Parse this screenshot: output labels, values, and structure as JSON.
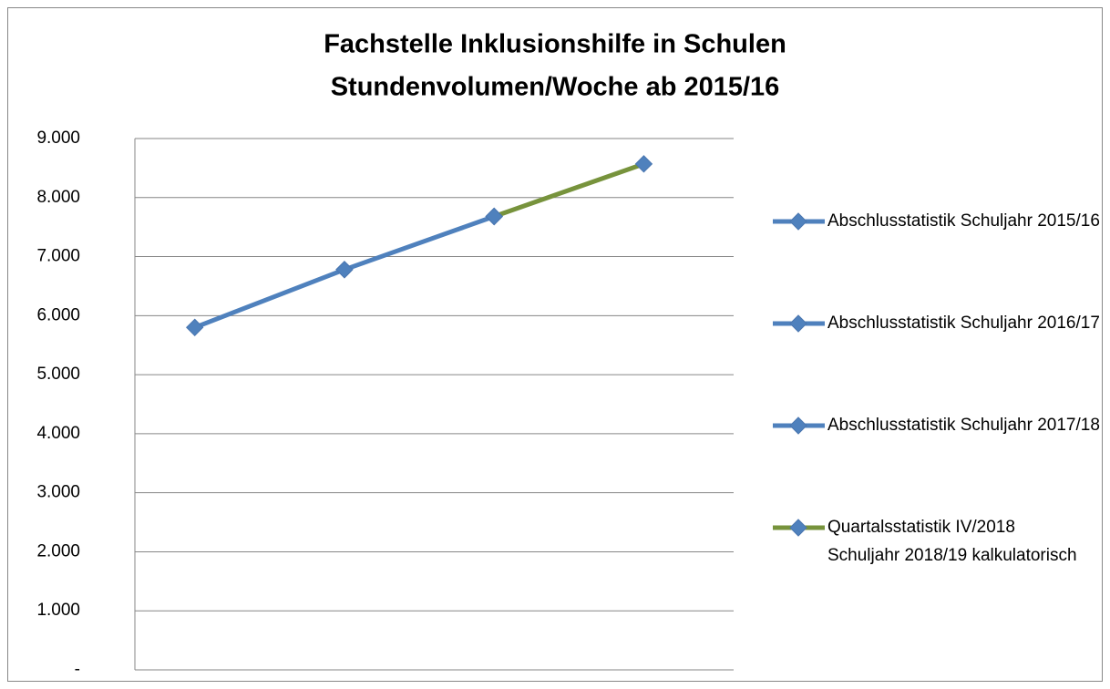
{
  "chart_data": {
    "type": "line",
    "title": "Fachstelle Inklusionshilfe in Schulen",
    "subtitle": "Stundenvolumen/Woche ab 2015/16",
    "categories": [
      null,
      null,
      null,
      null
    ],
    "series": [
      {
        "name": "Abschlusstatistik Schuljahr 2015/16",
        "color": "#4f81bd",
        "values": [
          5800,
          6780,
          null,
          null
        ]
      },
      {
        "name": "Abschlusstatistik Schuljahr 2016/17",
        "color": "#4f81bd",
        "values": [
          null,
          6780,
          7680,
          null
        ]
      },
      {
        "name": "Abschlusstatistik Schuljahr 2017/18",
        "color": "#4f81bd",
        "values": [
          null,
          null,
          7680,
          null
        ]
      },
      {
        "name": "Quartalsstatistik IV/2018 Schuljahr 2018/19 kalkulatorisch",
        "color": "#77933c",
        "values": [
          null,
          null,
          7680,
          8570
        ]
      }
    ],
    "ylim": [
      0,
      9000
    ],
    "yticks": [
      {
        "value": 0,
        "label": "-"
      },
      {
        "value": 1000,
        "label": "1.000"
      },
      {
        "value": 2000,
        "label": "2.000"
      },
      {
        "value": 3000,
        "label": "3.000"
      },
      {
        "value": 4000,
        "label": "4.000"
      },
      {
        "value": 5000,
        "label": "5.000"
      },
      {
        "value": 6000,
        "label": "6.000"
      },
      {
        "value": 7000,
        "label": "7.000"
      },
      {
        "value": 8000,
        "label": "8.000"
      },
      {
        "value": 9000,
        "label": "9.000"
      }
    ],
    "grid": true,
    "legend": "right"
  }
}
